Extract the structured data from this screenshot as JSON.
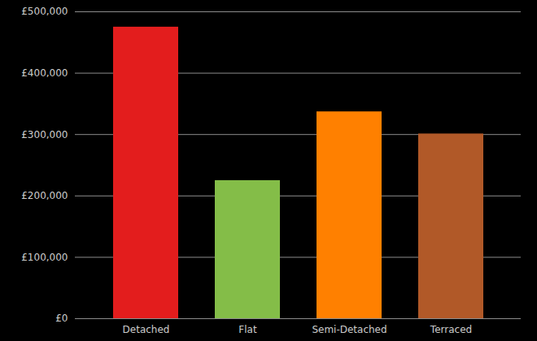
{
  "chart_data": {
    "type": "bar",
    "categories": [
      "Detached",
      "Flat",
      "Semi-Detached",
      "Terraced"
    ],
    "values": [
      475000,
      225000,
      337000,
      301000
    ],
    "colors": [
      "#e31d1d",
      "#84bd48",
      "#ff8000",
      "#b15928"
    ],
    "ylim": [
      0,
      500000
    ],
    "yticks": [
      {
        "value": 0,
        "label": "£0"
      },
      {
        "value": 100000,
        "label": "£100,000"
      },
      {
        "value": 200000,
        "label": "£200,000"
      },
      {
        "value": 300000,
        "label": "£300,000"
      },
      {
        "value": 400000,
        "label": "£400,000"
      },
      {
        "value": 500000,
        "label": "£500,000"
      }
    ],
    "grid": true
  }
}
